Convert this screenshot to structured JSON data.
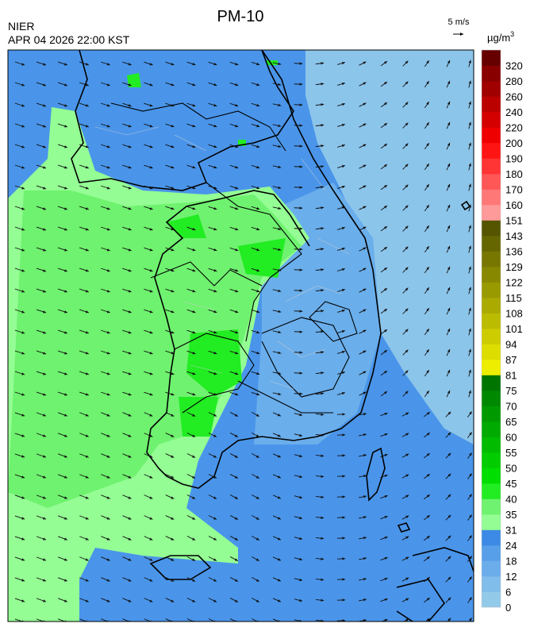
{
  "header": {
    "title": "PM-10",
    "agency": "NIER",
    "timestamp": "APR 04 2026 22:00 KST"
  },
  "wind_scale": {
    "label": "5 m/s"
  },
  "colorbar": {
    "unit": "µg/m",
    "unit_sup": "3",
    "bins": [
      {
        "value": 0,
        "color": "#93c9e9"
      },
      {
        "value": 6,
        "color": "#80bdea"
      },
      {
        "value": 12,
        "color": "#6badeb"
      },
      {
        "value": 18,
        "color": "#589fea"
      },
      {
        "value": 24,
        "color": "#3d8ae6"
      },
      {
        "value": 31,
        "color": "#94fd94"
      },
      {
        "value": 35,
        "color": "#6ff26f"
      },
      {
        "value": 40,
        "color": "#22ec22"
      },
      {
        "value": 45,
        "color": "#00dd00"
      },
      {
        "value": 50,
        "color": "#00cc00"
      },
      {
        "value": 55,
        "color": "#00bb00"
      },
      {
        "value": 60,
        "color": "#00aa00"
      },
      {
        "value": 65,
        "color": "#009a00"
      },
      {
        "value": 70,
        "color": "#008800"
      },
      {
        "value": 75,
        "color": "#007500"
      },
      {
        "value": 81,
        "color": "#eeee00"
      },
      {
        "value": 87,
        "color": "#dddd00"
      },
      {
        "value": 94,
        "color": "#cccc00"
      },
      {
        "value": 101,
        "color": "#bbbb00"
      },
      {
        "value": 108,
        "color": "#aaaa00"
      },
      {
        "value": 115,
        "color": "#999900"
      },
      {
        "value": 122,
        "color": "#888800"
      },
      {
        "value": 129,
        "color": "#777700"
      },
      {
        "value": 136,
        "color": "#666600"
      },
      {
        "value": 143,
        "color": "#555500"
      },
      {
        "value": 151,
        "color": "#ff9a9a"
      },
      {
        "value": 160,
        "color": "#ff7878"
      },
      {
        "value": 170,
        "color": "#ff5656"
      },
      {
        "value": 180,
        "color": "#ff3434"
      },
      {
        "value": 190,
        "color": "#ff1414"
      },
      {
        "value": 200,
        "color": "#ee0000"
      },
      {
        "value": 220,
        "color": "#d40000"
      },
      {
        "value": 240,
        "color": "#bb0000"
      },
      {
        "value": 260,
        "color": "#a00000"
      },
      {
        "value": 280,
        "color": "#880000"
      },
      {
        "value": 320,
        "color": "#660000"
      }
    ]
  }
}
